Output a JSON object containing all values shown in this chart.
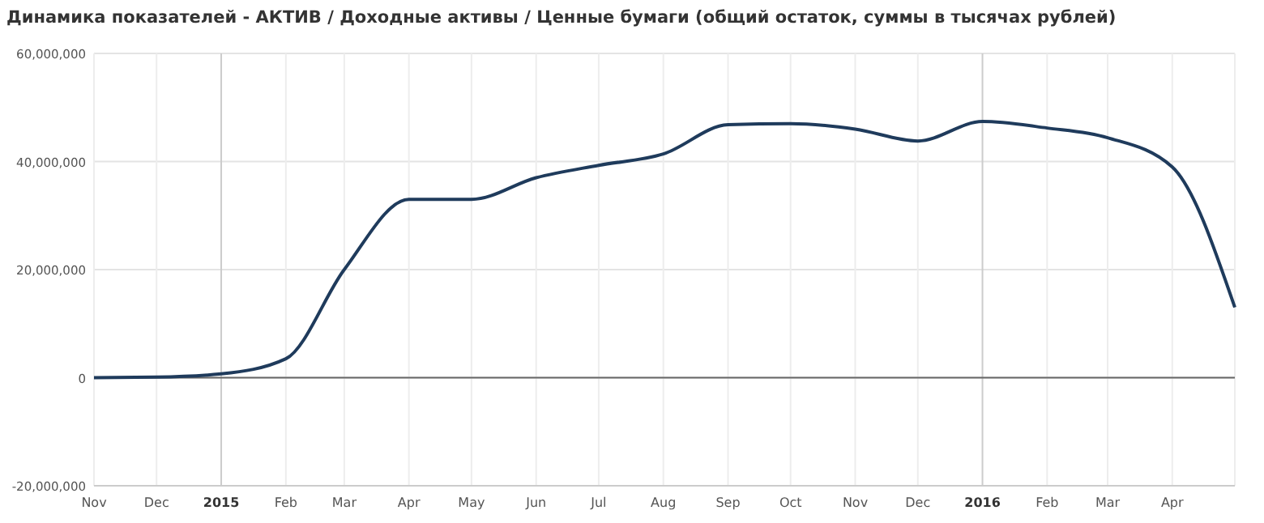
{
  "chart_data": {
    "type": "line",
    "title": "Динамика показателей - АКТИВ / Доходные активы / Ценные бумаги (общий остаток, суммы в тысячах рублей)",
    "x": [
      "2014-11",
      "2014-12",
      "2015-01",
      "2015-02",
      "2015-03",
      "2015-04",
      "2015-05",
      "2015-06",
      "2015-07",
      "2015-08",
      "2015-09",
      "2015-10",
      "2015-11",
      "2015-12",
      "2016-01",
      "2016-02",
      "2016-03",
      "2016-04",
      "2016-05"
    ],
    "series": [
      {
        "color": "#1f3b5c",
        "values": [
          0,
          100000,
          700000,
          3500000,
          20000000,
          33000000,
          33000000,
          37000000,
          39300000,
          41400000,
          46800000,
          47000000,
          46000000,
          43800000,
          47400000,
          46200000,
          44400000,
          39000000,
          13000000
        ]
      }
    ],
    "xlim": [
      "2014-11",
      "2016-05"
    ],
    "xticks": [
      {
        "value": "2014-11",
        "label": "Nov"
      },
      {
        "value": "2014-12",
        "label": "Dec"
      },
      {
        "value": "2015-01",
        "label": "2015"
      },
      {
        "value": "2015-02",
        "label": "Feb"
      },
      {
        "value": "2015-03",
        "label": "Mar"
      },
      {
        "value": "2015-04",
        "label": "Apr"
      },
      {
        "value": "2015-05",
        "label": "May"
      },
      {
        "value": "2015-06",
        "label": "Jun"
      },
      {
        "value": "2015-07",
        "label": "Jul"
      },
      {
        "value": "2015-08",
        "label": "Aug"
      },
      {
        "value": "2015-09",
        "label": "Sep"
      },
      {
        "value": "2015-10",
        "label": "Oct"
      },
      {
        "value": "2015-11",
        "label": "Nov"
      },
      {
        "value": "2015-12",
        "label": "Dec"
      },
      {
        "value": "2016-01",
        "label": "2016"
      },
      {
        "value": "2016-02",
        "label": "Feb"
      },
      {
        "value": "2016-03",
        "label": "Mar"
      },
      {
        "value": "2016-04",
        "label": "Apr"
      }
    ],
    "ylim": [
      -20000000,
      60000000
    ],
    "yticks": [
      {
        "value": -20000000,
        "label": "-20,000,000"
      },
      {
        "value": 0,
        "label": "0"
      },
      {
        "value": 20000000,
        "label": "20,000,000"
      },
      {
        "value": 40000000,
        "label": "40,000,000"
      },
      {
        "value": 60000000,
        "label": "60,000,000"
      }
    ],
    "grid": true,
    "ref_lines": [
      {
        "axis": "y",
        "value": 0,
        "color": "#666666"
      }
    ],
    "line_style": "solid",
    "marker": "none"
  }
}
